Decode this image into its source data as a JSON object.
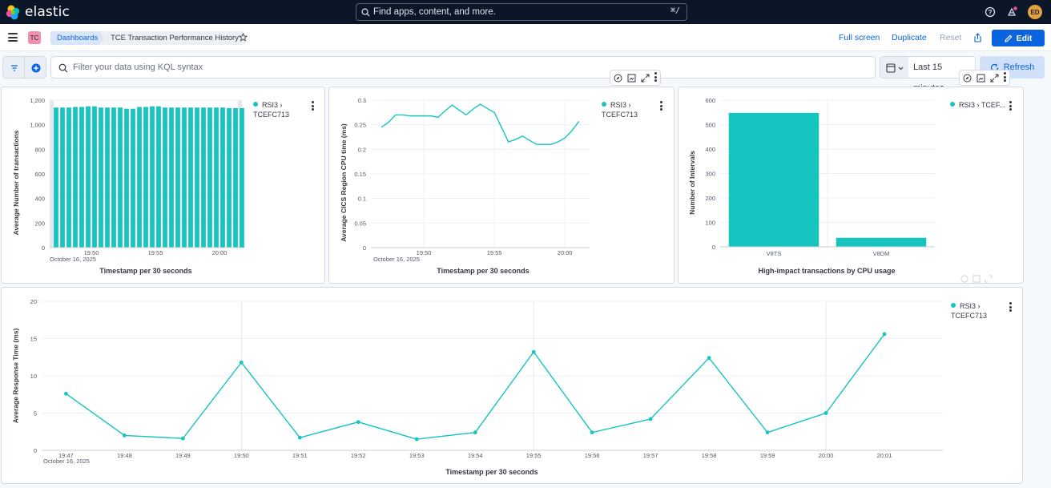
{
  "app": {
    "brand": "elastic",
    "search_placeholder": "Find apps, content, and more.",
    "search_shortcut": "⌘/",
    "user_initials": "ED"
  },
  "nav": {
    "space_badge": "TC",
    "breadcrumbs": [
      "Dashboards",
      "TCE Transaction Performance History"
    ],
    "actions": {
      "full_screen": "Full screen",
      "duplicate": "Duplicate",
      "reset": "Reset",
      "edit": "Edit"
    }
  },
  "query": {
    "placeholder": "Filter your data using KQL syntax",
    "time_range": "Last 15 minutes",
    "refresh": "Refresh"
  },
  "colors": {
    "series": "#16c5c0",
    "accent": "#0b64dd",
    "topbar": "#0b1628"
  },
  "panels": [
    {
      "legend_label": "RSI3 › TCEFC713",
      "xlabel": "Timestamp per 30 seconds",
      "ylabel": "Average Number of transactions",
      "date_label": "October 16, 2025"
    },
    {
      "legend_label": "RSI3 › TCEFC713",
      "xlabel": "Timestamp per 30 seconds",
      "ylabel": "Average CICS Region CPU time (ms)",
      "date_label": "October 16, 2025"
    },
    {
      "legend_label": "RSI3 › TCEF...",
      "xlabel": "High-impact transactions by CPU usage",
      "ylabel": "Number of Intervals"
    },
    {
      "legend_label": "RSI3 › TCEFC713",
      "xlabel": "Timestamp per 30 seconds",
      "ylabel": "Average Response Time (ms)",
      "date_label": "October 16, 2025"
    }
  ],
  "chart_data": [
    {
      "type": "bar",
      "x": [
        "19:47:00",
        "19:47:30",
        "19:48:00",
        "19:48:30",
        "19:49:00",
        "19:49:30",
        "19:50:00",
        "19:50:30",
        "19:51:00",
        "19:51:30",
        "19:52:00",
        "19:52:30",
        "19:53:00",
        "19:53:30",
        "19:54:00",
        "19:54:30",
        "19:55:00",
        "19:55:30",
        "19:56:00",
        "19:56:30",
        "19:57:00",
        "19:57:30",
        "19:58:00",
        "19:58:30",
        "19:59:00",
        "19:59:30",
        "20:00:00",
        "20:00:30",
        "20:01:00",
        "20:01:30"
      ],
      "series": [
        {
          "name": "RSI3 › TCEFC713",
          "values": [
            1140,
            1140,
            1140,
            1145,
            1145,
            1150,
            1150,
            1140,
            1140,
            1140,
            1140,
            1130,
            1130,
            1145,
            1145,
            1150,
            1150,
            1140,
            1140,
            1140,
            1140,
            1140,
            1140,
            1140,
            1140,
            1140,
            1140,
            1135,
            1135,
            1135
          ]
        }
      ],
      "x_ticks": [
        "19:50",
        "19:55",
        "20:00"
      ],
      "y_ticks": [
        "0",
        "200",
        "400",
        "600",
        "800",
        "1,000",
        "1,200"
      ],
      "ylim": [
        0,
        1200
      ],
      "xlabel": "Timestamp per 30 seconds",
      "ylabel": "Average Number of transactions",
      "legend": "top-right"
    },
    {
      "type": "line",
      "x": [
        "19:47:00",
        "19:47:30",
        "19:48:00",
        "19:48:30",
        "19:49:00",
        "19:49:30",
        "19:50:00",
        "19:50:30",
        "19:51:00",
        "19:51:30",
        "19:52:00",
        "19:52:30",
        "19:53:00",
        "19:53:30",
        "19:54:00",
        "19:54:30",
        "19:55:00",
        "19:55:30",
        "19:56:00",
        "19:56:30",
        "19:57:00",
        "19:57:30",
        "19:58:00",
        "19:58:30",
        "19:59:00",
        "19:59:30",
        "20:00:00",
        "20:00:30",
        "20:01:00"
      ],
      "series": [
        {
          "name": "RSI3 › TCEFC713",
          "values": [
            0.245,
            0.255,
            0.27,
            0.27,
            0.268,
            0.268,
            0.268,
            0.268,
            0.265,
            0.278,
            0.29,
            0.28,
            0.27,
            0.282,
            0.292,
            0.283,
            0.275,
            0.245,
            0.215,
            0.22,
            0.227,
            0.218,
            0.21,
            0.21,
            0.21,
            0.215,
            0.223,
            0.238,
            0.257
          ]
        }
      ],
      "x_ticks": [
        "19:50",
        "19:55",
        "20:00"
      ],
      "y_ticks": [
        "0",
        "0.05",
        "0.1",
        "0.15",
        "0.2",
        "0.25",
        "0.3"
      ],
      "ylim": [
        0,
        0.3
      ],
      "xlabel": "Timestamp per 30 seconds",
      "ylabel": "Average CICS Region CPU time (ms)",
      "legend": "top-right"
    },
    {
      "type": "bar",
      "categories": [
        "V8TS",
        "V8DM"
      ],
      "series": [
        {
          "name": "RSI3 › TCEF...",
          "values": [
            548,
            37
          ]
        }
      ],
      "y_ticks": [
        "0",
        "100",
        "200",
        "300",
        "400",
        "500",
        "600"
      ],
      "ylim": [
        0,
        600
      ],
      "xlabel": "High-impact transactions by CPU usage",
      "ylabel": "Number of Intervals",
      "legend": "top-right"
    },
    {
      "type": "line",
      "x": [
        "19:47",
        "19:48",
        "19:49",
        "19:50",
        "19:51",
        "19:52",
        "19:53",
        "19:54",
        "19:55",
        "19:56",
        "19:57",
        "19:58",
        "19:59",
        "20:00",
        "20:01"
      ],
      "series": [
        {
          "name": "RSI3 › TCEFC713",
          "values": [
            7.6,
            2.0,
            1.6,
            11.8,
            1.7,
            3.8,
            1.5,
            2.4,
            13.2,
            2.4,
            4.2,
            12.4,
            2.4,
            5.0,
            15.6
          ]
        }
      ],
      "x_ticks": [
        "19:47",
        "19:48",
        "19:49",
        "19:50",
        "19:51",
        "19:52",
        "19:53",
        "19:54",
        "19:55",
        "19:56",
        "19:57",
        "19:58",
        "19:59",
        "20:00",
        "20:01"
      ],
      "y_ticks": [
        "0",
        "5",
        "10",
        "15",
        "20"
      ],
      "ylim": [
        0,
        20
      ],
      "xlabel": "Timestamp per 30 seconds",
      "ylabel": "Average Response Time (ms)",
      "legend": "top-right"
    }
  ]
}
